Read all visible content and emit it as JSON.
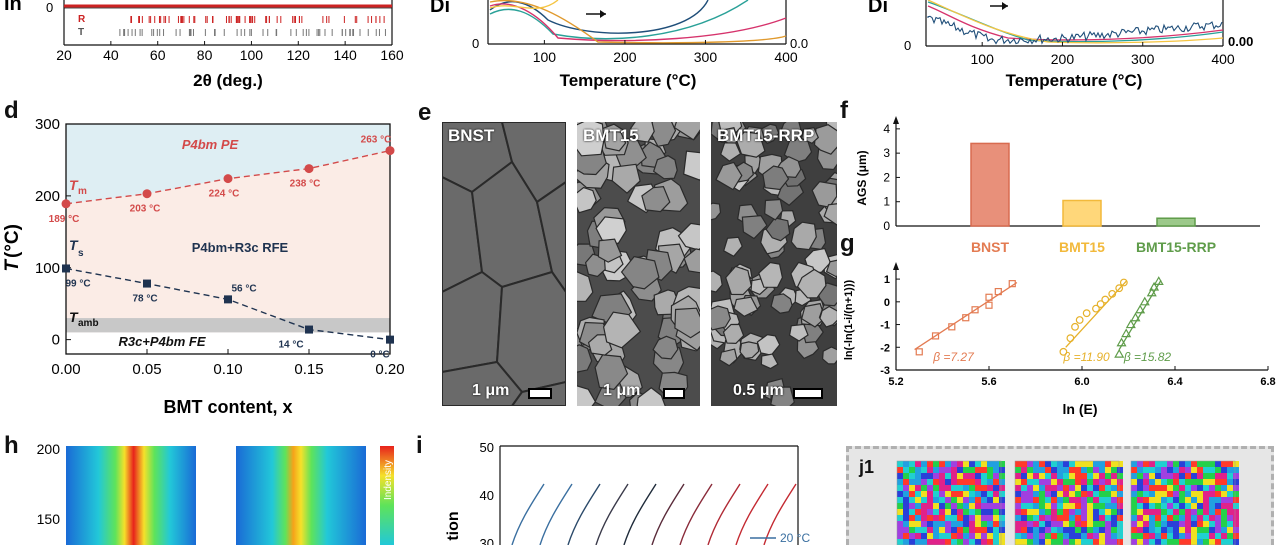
{
  "panels": {
    "top_left": {
      "y_axis_label": "In",
      "y_tick": "0",
      "x_ticks": [
        "20",
        "40",
        "60",
        "80",
        "100",
        "120",
        "140",
        "160"
      ],
      "x_label": "2θ (deg.)",
      "row_labels": [
        "R",
        "T"
      ]
    },
    "top_mid": {
      "y_axis_label": "Di",
      "y_tick_left": "0",
      "y_tick_right": "0.0",
      "x_ticks": [
        "100",
        "200",
        "300",
        "400"
      ],
      "x_label": "Temperature (°C)"
    },
    "top_right": {
      "y_axis_label": "Di",
      "y_tick_left": "0",
      "y_tick_right": "0.00",
      "x_ticks": [
        "100",
        "200",
        "300",
        "400"
      ],
      "x_label": "Temperature (°C)"
    },
    "d": {
      "letter": "d",
      "y_ticks": [
        "0",
        "100",
        "200",
        "300"
      ],
      "x_ticks": [
        "0.00",
        "0.05",
        "0.10",
        "0.15",
        "0.20"
      ],
      "x_label": "BMT content, x",
      "y_label_main": "T",
      "y_label_unit": "(°C)",
      "region_pe": "P4bm  PE",
      "region_rfe": "P4bm+R3c RFE",
      "region_fe": "R3c+P4bm  FE",
      "tm_label": "T",
      "tm_sub": "m",
      "ts_label": "T",
      "ts_sub": "s",
      "tamb_label": "T",
      "tamb_sub": "amb",
      "tm_points": [
        {
          "x": 0.0,
          "y": 189,
          "label": "189 °C"
        },
        {
          "x": 0.05,
          "y": 203,
          "label": "203 °C"
        },
        {
          "x": 0.1,
          "y": 224,
          "label": "224 °C"
        },
        {
          "x": 0.15,
          "y": 238,
          "label": "238 °C"
        },
        {
          "x": 0.2,
          "y": 263,
          "label": "263 °C"
        }
      ],
      "ts_points": [
        {
          "x": 0.0,
          "y": 99,
          "label": "99 °C"
        },
        {
          "x": 0.05,
          "y": 78,
          "label": "78 °C"
        },
        {
          "x": 0.1,
          "y": 56,
          "label": "56 °C"
        },
        {
          "x": 0.15,
          "y": 14,
          "label": "14 °C"
        },
        {
          "x": 0.2,
          "y": 0,
          "label": "0 °C"
        }
      ]
    },
    "e": {
      "letter": "e",
      "images": [
        {
          "label": "BNST",
          "scale": "1 μm"
        },
        {
          "label": "BMT15",
          "scale": "1 μm"
        },
        {
          "label": "BMT15-RRP",
          "scale": "0.5 μm"
        }
      ]
    },
    "f": {
      "letter": "f",
      "y_label": "AGS (μm)",
      "y_ticks": [
        "0",
        "1",
        "2",
        "3",
        "4"
      ],
      "bars": [
        {
          "name": "BNST",
          "value": 3.4,
          "color": "#e8907a",
          "edge": "#d86b50"
        },
        {
          "name": "BMT15",
          "value": 1.05,
          "color": "#ffd77a",
          "edge": "#f2b93b"
        },
        {
          "name": "BMT15-RRP",
          "value": 0.32,
          "color": "#9cc98a",
          "edge": "#5f9c4a"
        }
      ],
      "label_colors": [
        "#e37b52",
        "#f2b93b",
        "#5f9c4a"
      ]
    },
    "g": {
      "letter": "g",
      "y_label": "ln(-ln(1-i/(n+1)))",
      "y_ticks": [
        "-3",
        "-2",
        "-1",
        "0",
        "1"
      ],
      "x_ticks": [
        "5.2",
        "5.6",
        "6.0",
        "6.4",
        "6.8"
      ],
      "x_label": "ln (E)",
      "betas": [
        {
          "text": "β =7.27",
          "color": "#e37b52"
        },
        {
          "text": "β =11.90",
          "color": "#e6b12a"
        },
        {
          "text": "β =15.82",
          "color": "#5f9c4a"
        }
      ]
    },
    "h": {
      "letter": "h",
      "y_ticks": [
        "200",
        "150"
      ],
      "colorbar_label": "Indensity"
    },
    "i": {
      "letter": "i",
      "y_ticks": [
        "50",
        "40",
        "30"
      ],
      "y_label": "tion",
      "legend_text": "20 °C"
    },
    "j1": {
      "label": "j1"
    }
  },
  "colors": {
    "pe_bg": "#deeef3",
    "rfe_bg": "#fbece6",
    "amb_band": "#c8c8c8",
    "tm_color": "#d34a4a",
    "ts_color": "#1f3350"
  }
}
